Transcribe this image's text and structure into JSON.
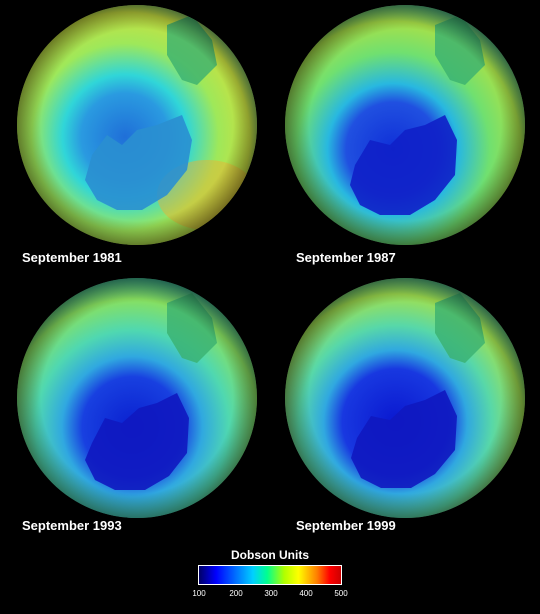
{
  "panels": [
    {
      "caption": "September 1981",
      "year": 1981
    },
    {
      "caption": "September 1987",
      "year": 1987
    },
    {
      "caption": "September 1993",
      "year": 1993
    },
    {
      "caption": "September 1999",
      "year": 1999
    }
  ],
  "legend": {
    "title": "Dobson Units",
    "ticks": [
      "100",
      "200",
      "300",
      "400",
      "500"
    ],
    "range": [
      100,
      500
    ]
  },
  "colors": {
    "background": "#000000",
    "ozone_low": "#0000ff",
    "ozone_mid": "#00ffd0",
    "ozone_high": "#ffff00",
    "ozone_max": "#ff0000"
  }
}
